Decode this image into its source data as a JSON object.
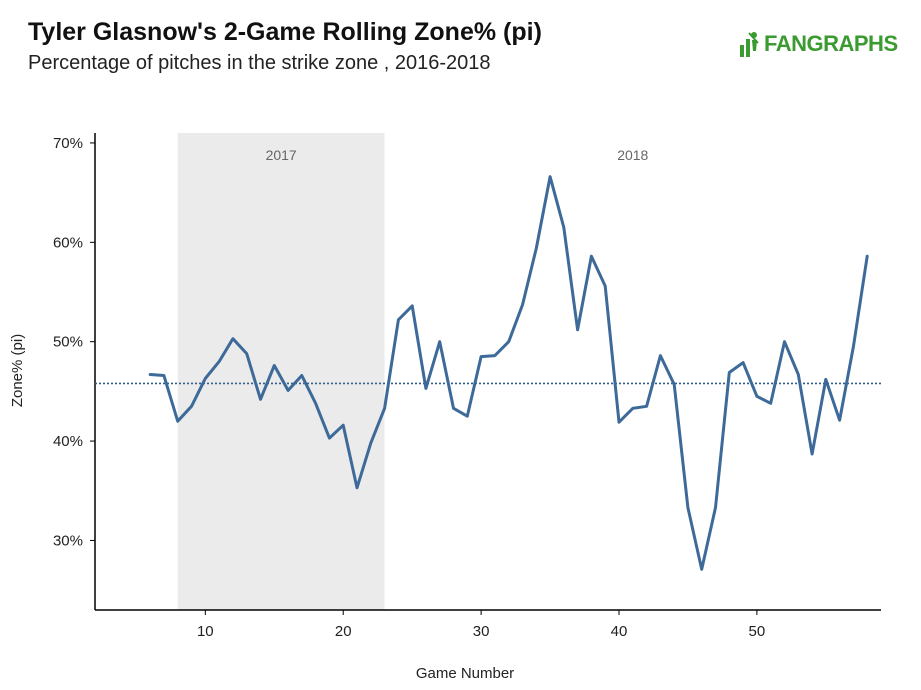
{
  "header": {
    "title": "Tyler Glasnow's 2-Game Rolling Zone% (pi)",
    "subtitle": "Percentage of pitches in the strike zone , 2016-2018",
    "logo_text": "FANGRAPHS",
    "logo_icon": "fangraphs-batter-icon"
  },
  "colors": {
    "line": "#3d6a99",
    "average_line": "#2f5f8a",
    "band": "#ebebeb",
    "logo": "#3b9a30"
  },
  "chart_data": {
    "type": "line",
    "title": "Tyler Glasnow's 2-Game Rolling Zone% (pi)",
    "subtitle": "Percentage of pitches in the strike zone , 2016-2018",
    "xlabel": "Game Number",
    "ylabel": "Zone% (pi)",
    "xlim": [
      2,
      59
    ],
    "ylim": [
      23,
      71
    ],
    "x_ticks": [
      10,
      20,
      30,
      40,
      50
    ],
    "x_tick_labels": [
      "10",
      "20",
      "30",
      "40",
      "50"
    ],
    "y_ticks": [
      30,
      40,
      50,
      60,
      70
    ],
    "y_tick_labels": [
      "30%",
      "40%",
      "50%",
      "60%",
      "70%"
    ],
    "grid": false,
    "average": 45.8,
    "bands": [
      {
        "label": "2017",
        "x_start": 8,
        "x_end": 23,
        "shaded": true
      },
      {
        "label": "2018",
        "x_start": 23,
        "x_end": 59,
        "shaded": false
      }
    ],
    "series": [
      {
        "x": [
          6,
          7,
          8,
          9,
          10,
          11,
          12,
          13,
          14,
          15,
          16,
          17,
          18,
          19,
          20,
          21,
          22,
          23,
          24,
          25,
          26,
          27,
          28,
          29,
          30,
          31,
          32,
          33,
          34,
          35,
          36,
          37,
          38,
          39,
          40,
          41,
          42,
          43,
          44,
          45,
          46,
          47,
          48,
          49,
          50,
          51,
          52,
          53,
          54,
          55,
          56,
          57,
          58
        ],
        "values": [
          46.7,
          46.6,
          42.0,
          43.5,
          46.3,
          48.0,
          50.3,
          48.8,
          44.2,
          47.6,
          45.1,
          46.6,
          43.8,
          40.3,
          41.6,
          35.3,
          39.8,
          43.3,
          52.2,
          53.6,
          45.3,
          50.0,
          43.3,
          42.5,
          48.5,
          48.6,
          50.0,
          53.7,
          59.4,
          66.6,
          61.5,
          51.2,
          58.6,
          55.6,
          41.9,
          43.3,
          43.5,
          48.6,
          45.7,
          33.3,
          27.1,
          33.3,
          46.9,
          47.9,
          44.5,
          43.8,
          50.0,
          46.7,
          38.7,
          46.2,
          42.1,
          49.5,
          58.6
        ]
      }
    ]
  }
}
